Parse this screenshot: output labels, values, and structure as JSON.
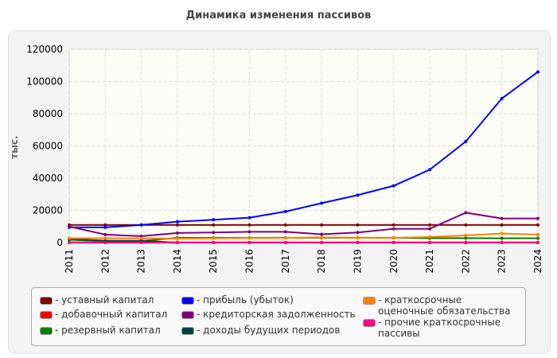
{
  "chart_data": {
    "type": "line",
    "title": "Динамика изменения пассивов",
    "ylabel": "тыс.",
    "xlabel": "",
    "categories": [
      "2011",
      "2012",
      "2013",
      "2014",
      "2015",
      "2016",
      "2017",
      "2018",
      "2019",
      "2020",
      "2021",
      "2022",
      "2023",
      "2024"
    ],
    "ylim": [
      0,
      120000
    ],
    "yticks": [
      "0",
      "20000",
      "40000",
      "60000",
      "80000",
      "100000",
      "120000"
    ],
    "grid": true,
    "legend": "bottom",
    "series": [
      {
        "name": "- уставный капитал",
        "color": "#800000",
        "values": [
          11000,
          11000,
          11000,
          11000,
          11000,
          11000,
          11000,
          11000,
          11000,
          11000,
          11000,
          11000,
          11000,
          11000
        ]
      },
      {
        "name": "- добавочный капитал",
        "color": "#ff0000",
        "values": [
          200,
          200,
          200,
          200,
          200,
          200,
          200,
          200,
          200,
          200,
          200,
          200,
          200,
          200
        ]
      },
      {
        "name": "- резервный капитал",
        "color": "#008000",
        "values": [
          1800,
          1000,
          1000,
          3000,
          3000,
          3000,
          3000,
          3000,
          3000,
          3000,
          2800,
          2800,
          2700,
          2700
        ]
      },
      {
        "name": "- прибыль (убыток)",
        "color": "#0000ff",
        "values": [
          9500,
          9500,
          11000,
          13000,
          14200,
          15500,
          19300,
          24500,
          29500,
          35300,
          45300,
          62800,
          89500,
          106000
        ]
      },
      {
        "name": "- кредиторская задолженность",
        "color": "#800080",
        "values": [
          10000,
          5000,
          4000,
          6000,
          6300,
          6700,
          6700,
          5200,
          6300,
          8600,
          8600,
          18600,
          15000,
          15000
        ]
      },
      {
        "name": "- доходы будущих периодов",
        "color": "#004040",
        "values": [
          2200,
          1200,
          1200,
          0,
          0,
          0,
          0,
          0,
          0,
          0,
          0,
          0,
          0,
          0
        ]
      },
      {
        "name": "- краткосрочные оценочные обязательства",
        "color": "#ff8000",
        "values": [
          2700,
          2700,
          2700,
          2500,
          2700,
          2900,
          2900,
          3300,
          3000,
          3000,
          3500,
          4500,
          5700,
          5000
        ]
      },
      {
        "name": "- прочие краткосрочные пассивы",
        "color": "#ff0080",
        "values": [
          0,
          0,
          0,
          0,
          0,
          0,
          0,
          0,
          0,
          0,
          0,
          0,
          0,
          0
        ]
      }
    ]
  }
}
